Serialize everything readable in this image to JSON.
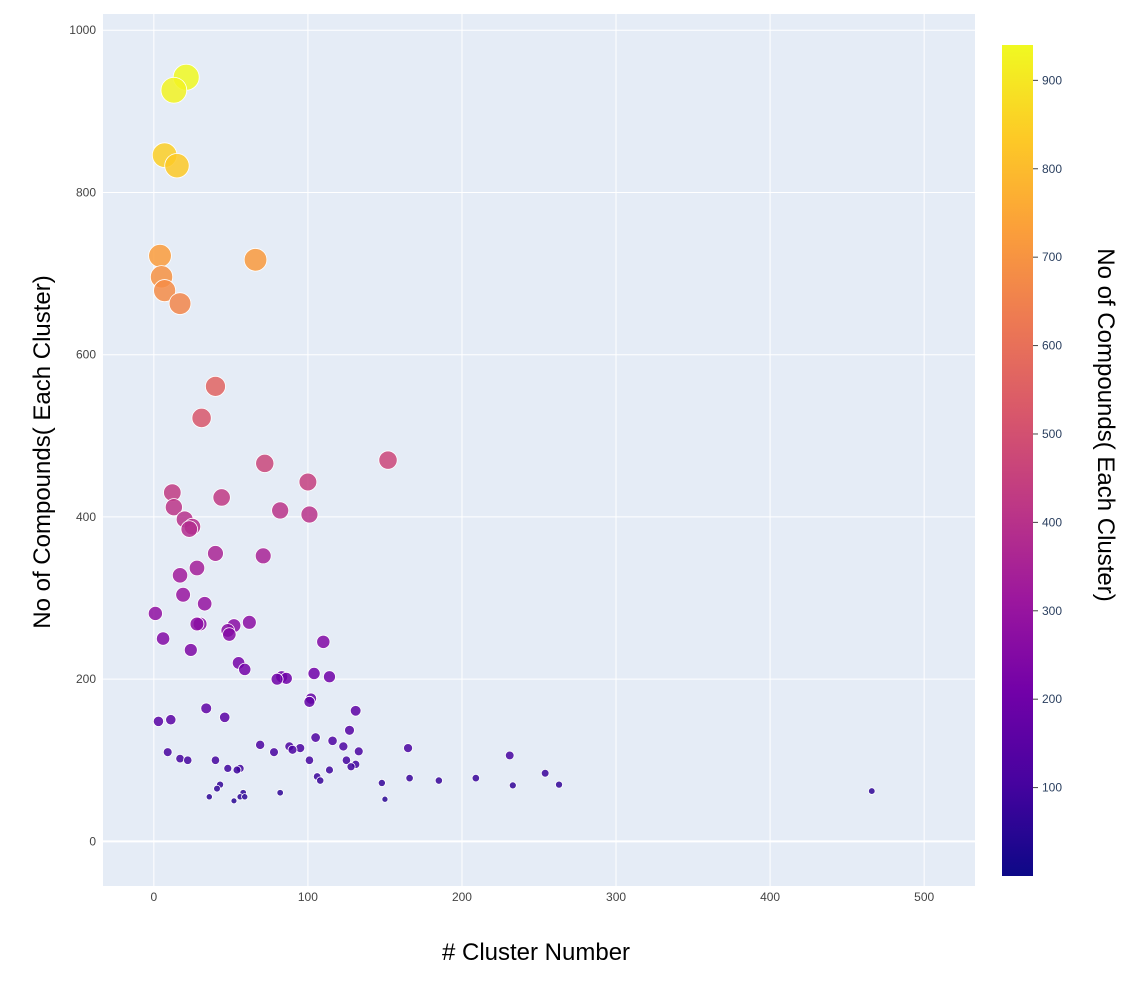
{
  "chart_data": {
    "type": "scatter",
    "title": "",
    "xlabel": "# Cluster Number",
    "ylabel": "No of Compounds( Each Cluster)",
    "colorbar_title": "No of Compounds( Each Cluster)",
    "xlim": [
      -33,
      533
    ],
    "ylim": [
      -55,
      1020
    ],
    "x_ticks": [
      0,
      100,
      200,
      300,
      400,
      500
    ],
    "x_tick_labels": [
      "0",
      "100",
      "200",
      "300",
      "400",
      "500"
    ],
    "y_ticks": [
      0,
      200,
      400,
      600,
      800,
      1000
    ],
    "y_tick_labels": [
      "0",
      "200",
      "400",
      "600",
      "800",
      "1000"
    ],
    "color_range": [
      0,
      940
    ],
    "colorbar_ticks": [
      100,
      200,
      300,
      400,
      500,
      600,
      700,
      800,
      900
    ],
    "colorbar_tick_labels": [
      "100",
      "200",
      "300",
      "400",
      "500",
      "600",
      "700",
      "800",
      "900"
    ],
    "colorscale": [
      "#0d0887",
      "#46039f",
      "#7201a8",
      "#9c179e",
      "#bd3786",
      "#d8576b",
      "#ed7953",
      "#fb9f3a",
      "#fdca26",
      "#f0f921"
    ],
    "grid": true,
    "background": "#e5ecf6",
    "point_note": "marker size and color both encode y value",
    "x": [
      21,
      13,
      7,
      15,
      4,
      5,
      7,
      17,
      66,
      40,
      31,
      152,
      72,
      100,
      44,
      82,
      101,
      12,
      13,
      20,
      23,
      25,
      71,
      40,
      17,
      28,
      19,
      33,
      1,
      6,
      62,
      30,
      28,
      52,
      48,
      49,
      24,
      55,
      59,
      110,
      104,
      114,
      86,
      83,
      80,
      102,
      101,
      131,
      127,
      116,
      34,
      46,
      11,
      3,
      105,
      69,
      133,
      123,
      165,
      9,
      95,
      90,
      88,
      231,
      254,
      78,
      209,
      166,
      125,
      106,
      101,
      36,
      48,
      54,
      56,
      114,
      131,
      128,
      82,
      56,
      22,
      17,
      108,
      148,
      185,
      263,
      233,
      41,
      58,
      43,
      59,
      150,
      40,
      52,
      466
    ],
    "y": [
      942,
      926,
      846,
      833,
      722,
      696,
      679,
      663,
      717,
      561,
      522,
      470,
      466,
      443,
      424,
      408,
      403,
      430,
      412,
      397,
      385,
      388,
      352,
      355,
      328,
      337,
      304,
      293,
      281,
      250,
      270,
      268,
      268,
      266,
      260,
      255,
      236,
      220,
      212,
      246,
      207,
      203,
      201,
      203,
      200,
      176,
      172,
      161,
      137,
      124,
      164,
      153,
      150,
      148,
      128,
      119,
      111,
      117,
      115,
      110,
      115,
      113,
      117,
      106,
      84,
      110,
      78,
      78,
      100,
      80,
      100,
      55,
      90,
      88,
      90,
      88,
      95,
      92,
      60,
      55,
      100,
      102,
      75,
      72,
      75,
      70,
      69,
      65,
      60,
      70,
      55,
      52,
      100,
      50,
      62
    ]
  }
}
